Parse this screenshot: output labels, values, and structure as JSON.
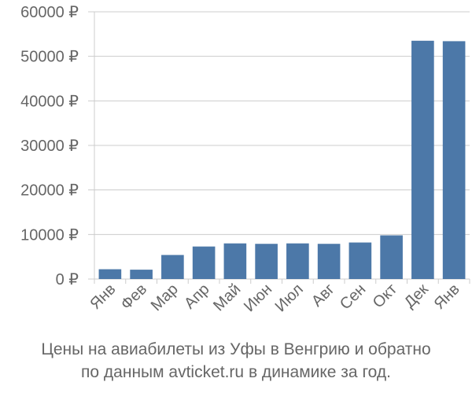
{
  "chart_data": {
    "type": "bar",
    "categories": [
      "Янв",
      "Фев",
      "Мар",
      "Апр",
      "Май",
      "Июн",
      "Июл",
      "Авг",
      "Сен",
      "Окт",
      "Дек",
      "Янв"
    ],
    "values": [
      2200,
      2100,
      5400,
      7300,
      8000,
      7900,
      8000,
      7900,
      8200,
      9800,
      53500,
      53400
    ],
    "y_ticks": [
      "0 ₽",
      "10000 ₽",
      "20000 ₽",
      "30000 ₽",
      "40000 ₽",
      "50000 ₽",
      "60000 ₽"
    ],
    "ylim": [
      0,
      60000
    ],
    "grid": true,
    "bar_color": "#4c78a8",
    "axis_color": "#cccccc",
    "label_color": "#666666"
  },
  "caption": {
    "line1": "Цены на авиабилеты из Уфы в Венгрию и обратно",
    "line2": "по данным avticket.ru в динамике за год."
  }
}
